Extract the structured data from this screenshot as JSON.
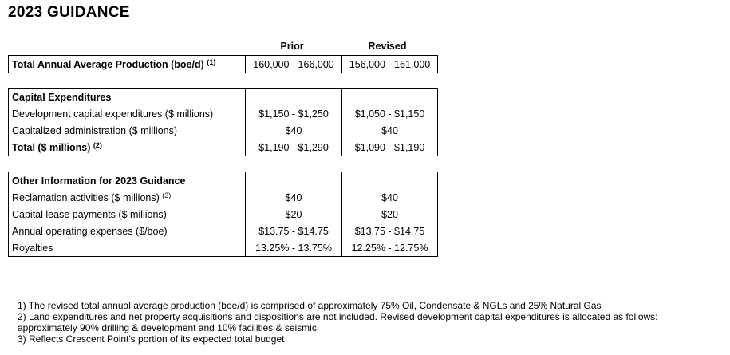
{
  "title": "2023 GUIDANCE",
  "columns": {
    "prior": "Prior",
    "revised": "Revised"
  },
  "production": {
    "label": "Total Annual Average Production (boe/d)",
    "note": "(1)",
    "prior": "160,000 - 166,000",
    "revised": "156,000 - 161,000"
  },
  "capex": {
    "heading": "Capital Expenditures",
    "rows": [
      {
        "label": "Development capital expenditures ($ millions)",
        "note": "",
        "prior": "$1,150 - $1,250",
        "revised": "$1,050 - $1,150"
      },
      {
        "label": "Capitalized administration ($ millions)",
        "note": "",
        "prior": "$40",
        "revised": "$40"
      },
      {
        "label": "Total ($ millions)",
        "note": "(2)",
        "prior": "$1,190 - $1,290",
        "revised": "$1,090 - $1,190"
      }
    ]
  },
  "other": {
    "heading": "Other Information for 2023 Guidance",
    "rows": [
      {
        "label": "Reclamation activities ($ millions)",
        "note": "(3)",
        "prior": "$40",
        "revised": "$40"
      },
      {
        "label": "Capital lease payments ($ millions)",
        "note": "",
        "prior": "$20",
        "revised": "$20"
      },
      {
        "label": "Annual operating expenses ($/boe)",
        "note": "",
        "prior": "$13.75 - $14.75",
        "revised": "$13.75 - $14.75"
      },
      {
        "label": "Royalties",
        "note": "",
        "prior": "13.25% - 13.75%",
        "revised": "12.25% - 12.75%"
      }
    ]
  },
  "footnotes": [
    "1) The revised total annual average production (boe/d) is comprised of approximately 75% Oil, Condensate & NGLs and 25% Natural Gas",
    "2) Land expenditures and net property acquisitions and dispositions are not included. Revised development capital expenditures is allocated as follows:",
    "approximately 90% drilling & development and 10% facilities & seismic",
    "3) Reflects Crescent Point's portion of its expected total budget"
  ]
}
